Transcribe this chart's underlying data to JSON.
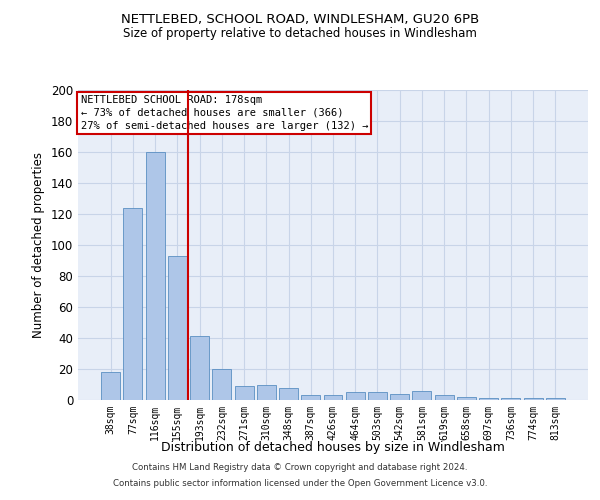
{
  "title1": "NETTLEBED, SCHOOL ROAD, WINDLESHAM, GU20 6PB",
  "title2": "Size of property relative to detached houses in Windlesham",
  "xlabel": "Distribution of detached houses by size in Windlesham",
  "ylabel": "Number of detached properties",
  "footer1": "Contains HM Land Registry data © Crown copyright and database right 2024.",
  "footer2": "Contains public sector information licensed under the Open Government Licence v3.0.",
  "categories": [
    "38sqm",
    "77sqm",
    "116sqm",
    "155sqm",
    "193sqm",
    "232sqm",
    "271sqm",
    "310sqm",
    "348sqm",
    "387sqm",
    "426sqm",
    "464sqm",
    "503sqm",
    "542sqm",
    "581sqm",
    "619sqm",
    "658sqm",
    "697sqm",
    "736sqm",
    "774sqm",
    "813sqm"
  ],
  "values": [
    18,
    124,
    160,
    93,
    41,
    20,
    9,
    10,
    8,
    3,
    3,
    5,
    5,
    4,
    6,
    3,
    2,
    1,
    1,
    1,
    1
  ],
  "bar_color": "#aec6e8",
  "bar_edge_color": "#5a8fc2",
  "annotation_title": "NETTLEBED SCHOOL ROAD: 178sqm",
  "annotation_line1": "← 73% of detached houses are smaller (366)",
  "annotation_line2": "27% of semi-detached houses are larger (132) →",
  "annotation_box_color": "#cc0000",
  "property_line_x": 3.5,
  "ylim": [
    0,
    200
  ],
  "yticks": [
    0,
    20,
    40,
    60,
    80,
    100,
    120,
    140,
    160,
    180,
    200
  ],
  "grid_color": "#c8d4e8",
  "background_color": "#e8eef8",
  "fig_width": 6.0,
  "fig_height": 5.0
}
